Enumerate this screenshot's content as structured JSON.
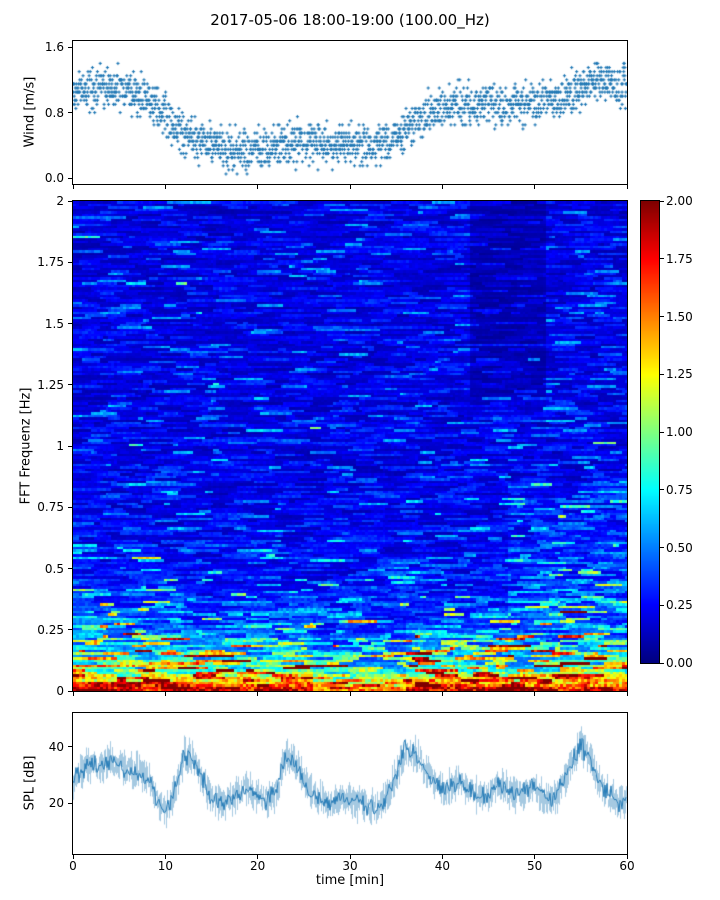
{
  "title": "2017-05-06 18:00-19:00 (100.00_Hz)",
  "xlabel": "time [min]",
  "accent_color": "#1f77b4",
  "chart_data": [
    {
      "type": "scatter",
      "name": "wind",
      "ylabel": "Wind [m/s]",
      "ylim": [
        0,
        1.6
      ],
      "ytick_values": [
        0,
        0.8,
        1.6
      ],
      "yticks": [
        "0.0",
        "0.8",
        "1.6"
      ],
      "xlim": [
        0,
        60
      ],
      "marker": "plus",
      "color": "#1f77b4",
      "quantize_step": 0.05,
      "spread": 0.25,
      "mean_profile": [
        [
          0,
          1.05
        ],
        [
          2,
          1.1
        ],
        [
          4,
          1.1
        ],
        [
          6,
          1.05
        ],
        [
          8,
          0.95
        ],
        [
          10,
          0.75
        ],
        [
          12,
          0.55
        ],
        [
          14,
          0.45
        ],
        [
          16,
          0.35
        ],
        [
          18,
          0.33
        ],
        [
          20,
          0.35
        ],
        [
          22,
          0.4
        ],
        [
          24,
          0.45
        ],
        [
          26,
          0.42
        ],
        [
          28,
          0.4
        ],
        [
          30,
          0.42
        ],
        [
          32,
          0.4
        ],
        [
          34,
          0.42
        ],
        [
          36,
          0.6
        ],
        [
          38,
          0.75
        ],
        [
          40,
          0.85
        ],
        [
          42,
          0.9
        ],
        [
          44,
          0.9
        ],
        [
          46,
          0.88
        ],
        [
          48,
          0.9
        ],
        [
          50,
          0.92
        ],
        [
          52,
          0.95
        ],
        [
          54,
          1.05
        ],
        [
          56,
          1.15
        ],
        [
          58,
          1.2
        ],
        [
          60,
          1.1
        ]
      ]
    },
    {
      "type": "heatmap",
      "name": "spectrogram",
      "ylabel": "FFT Frequenz [Hz]",
      "ylim": [
        0,
        2
      ],
      "ytick_values": [
        0,
        0.25,
        0.5,
        0.75,
        1,
        1.25,
        1.5,
        1.75,
        2
      ],
      "yticks": [
        "0",
        "0.25",
        "0.5",
        "0.75",
        "1",
        "1.25",
        "1.5",
        "1.75",
        "2"
      ],
      "xlim": [
        0,
        60
      ],
      "colormap": "jet",
      "clim": [
        0,
        2
      ],
      "colorbar_tick_values": [
        0,
        0.25,
        0.5,
        0.75,
        1,
        1.25,
        1.5,
        1.75,
        2
      ],
      "colorbar_ticks": [
        "0.00",
        "0.25",
        "0.50",
        "0.75",
        "1.00",
        "1.25",
        "1.50",
        "1.75",
        "2.00"
      ],
      "freq_intensity_profile": [
        [
          0,
          1.95
        ],
        [
          0.02,
          1.85
        ],
        [
          0.05,
          1.6
        ],
        [
          0.08,
          1.4
        ],
        [
          0.12,
          1.2
        ],
        [
          0.16,
          1.0
        ],
        [
          0.2,
          0.85
        ],
        [
          0.25,
          0.7
        ],
        [
          0.3,
          0.55
        ],
        [
          0.4,
          0.42
        ],
        [
          0.5,
          0.36
        ],
        [
          0.7,
          0.3
        ],
        [
          1.0,
          0.28
        ],
        [
          1.5,
          0.27
        ],
        [
          2,
          0.26
        ]
      ],
      "features": [
        {
          "trange": [
            43,
            51
          ],
          "frange": [
            1.2,
            2.0
          ],
          "gain": 0.55,
          "desc": "dark vertical band upper right"
        },
        {
          "trange": [
            26,
            36
          ],
          "frange": [
            0,
            0.3
          ],
          "gain": 0.8,
          "desc": "weaker low-frequency energy mid-hour"
        },
        {
          "trange": [
            47,
            60
          ],
          "frange": [
            0.3,
            0.85
          ],
          "gain": 1.3,
          "desc": "enhanced mid-frequency energy late"
        },
        {
          "trange": [
            0,
            12
          ],
          "frange": [
            0.15,
            0.5
          ],
          "gain": 1.15,
          "desc": "enhanced low-mid energy early"
        }
      ]
    },
    {
      "type": "line",
      "name": "spl",
      "ylabel": "SPL [dB]",
      "ylim": [
        2,
        52
      ],
      "ytick_values": [
        20,
        40
      ],
      "yticks": [
        "20",
        "40"
      ],
      "xlim": [
        0,
        60
      ],
      "xtick_values": [
        0,
        10,
        20,
        30,
        40,
        50,
        60
      ],
      "xticks": [
        "0",
        "10",
        "20",
        "30",
        "40",
        "50",
        "60"
      ],
      "color": "#1f77b4",
      "noise_db": 3.5,
      "minute_values": [
        28,
        32,
        34,
        33,
        35,
        34,
        32,
        31,
        30,
        22,
        16,
        24,
        37,
        36,
        28,
        22,
        20,
        21,
        24,
        25,
        23,
        21,
        24,
        36,
        35,
        28,
        23,
        21,
        20,
        22,
        21,
        20,
        19,
        18,
        22,
        30,
        39,
        38,
        33,
        28,
        25,
        26,
        28,
        24,
        22,
        23,
        26,
        25,
        23,
        24,
        26,
        22,
        21,
        26,
        34,
        41,
        36,
        28,
        23,
        21,
        20
      ]
    }
  ]
}
